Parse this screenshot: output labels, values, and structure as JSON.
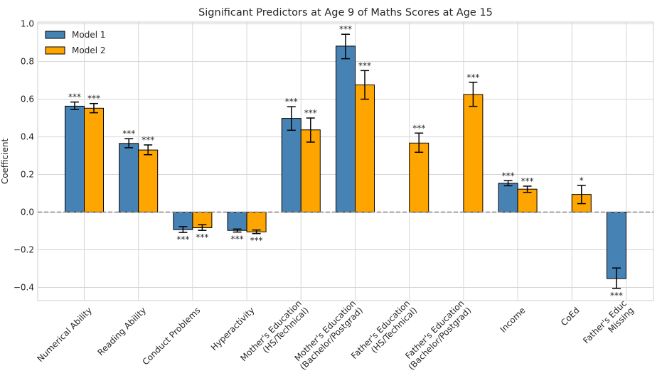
{
  "chart_data": {
    "type": "bar",
    "title": "Significant Predictors at Age 9 of Maths Scores at Age 15",
    "xlabel": "",
    "ylabel": "Coefficient",
    "ylim": [
      -0.47,
      1.01
    ],
    "yticks": [
      -0.4,
      -0.2,
      0.0,
      0.2,
      0.4,
      0.6,
      0.8,
      1.0
    ],
    "ytick_labels": [
      "−0.4",
      "−0.2",
      "0.0",
      "0.2",
      "0.4",
      "0.6",
      "0.8",
      "1.0"
    ],
    "grid": true,
    "legend_position": "top-left",
    "categories": [
      [
        "Numerical Ability"
      ],
      [
        "Reading Ability"
      ],
      [
        "Conduct Problems"
      ],
      [
        "Hyperactivity"
      ],
      [
        "Mother's Education",
        "(HS/Technical)"
      ],
      [
        "Mother's Education",
        "(Bachelor/Postgrad)"
      ],
      [
        "Father's Education",
        "(HS/Technical)"
      ],
      [
        "Father's Education",
        "(Bachelor/Postgrad)"
      ],
      [
        "Income"
      ],
      [
        "CoEd"
      ],
      [
        "Father's Educ",
        "Missing"
      ]
    ],
    "series": [
      {
        "name": "Model 1",
        "color": "#4682b4",
        "values": [
          0.563,
          0.365,
          -0.093,
          -0.097,
          0.498,
          0.882,
          null,
          null,
          0.153,
          null,
          -0.353
        ],
        "err_low": [
          0.545,
          0.342,
          -0.108,
          -0.106,
          0.435,
          0.815,
          null,
          null,
          0.14,
          null,
          -0.405
        ],
        "err_high": [
          0.585,
          0.39,
          -0.077,
          -0.09,
          0.56,
          0.945,
          null,
          null,
          0.167,
          null,
          -0.297
        ],
        "sig": [
          "***",
          "***",
          "***",
          "***",
          "***",
          "***",
          null,
          null,
          "***",
          null,
          "***"
        ]
      },
      {
        "name": "Model 2",
        "color": "#ffa500",
        "values": [
          0.552,
          0.33,
          -0.083,
          -0.105,
          0.437,
          0.676,
          0.367,
          0.625,
          0.122,
          0.094,
          null
        ],
        "err_low": [
          0.528,
          0.305,
          -0.097,
          -0.114,
          0.372,
          0.6,
          0.318,
          0.562,
          0.105,
          0.045,
          null
        ],
        "err_high": [
          0.577,
          0.357,
          -0.067,
          -0.095,
          0.5,
          0.752,
          0.42,
          0.69,
          0.138,
          0.142,
          null
        ],
        "sig": [
          "***",
          "***",
          "***",
          "***",
          "***",
          "***",
          "***",
          "***",
          "***",
          "*",
          null
        ]
      }
    ]
  }
}
